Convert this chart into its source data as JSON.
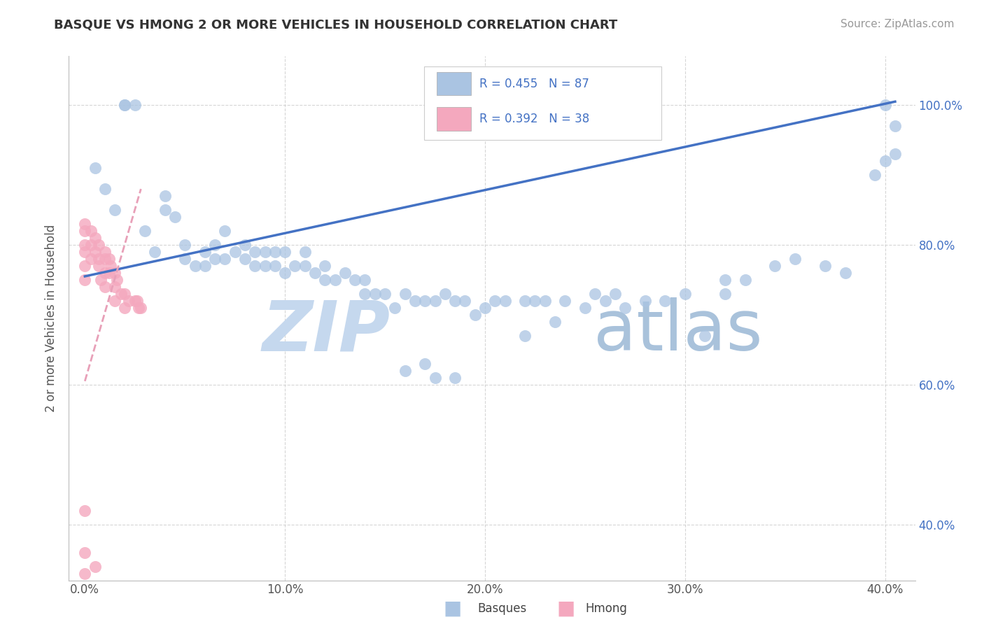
{
  "title": "BASQUE VS HMONG 2 OR MORE VEHICLES IN HOUSEHOLD CORRELATION CHART",
  "source": "Source: ZipAtlas.com",
  "ylabel": "2 or more Vehicles in Household",
  "R_basque": 0.455,
  "N_basque": 87,
  "R_hmong": 0.392,
  "N_hmong": 38,
  "basque_color": "#aac4e2",
  "hmong_color": "#f4a8be",
  "basque_line_color": "#4472c4",
  "hmong_line_color": "#e8a0b8",
  "legend_basque_color": "#aac4e2",
  "legend_hmong_color": "#f4a8be",
  "watermark_zip_color": "#c5d8ee",
  "watermark_atlas_color": "#a0bcd8",
  "basque_line_x0": 0.0,
  "basque_line_y0": 0.755,
  "basque_line_x1": 0.405,
  "basque_line_y1": 1.005,
  "hmong_line_x0": 0.0,
  "hmong_line_y0": 0.605,
  "hmong_line_x1": 0.028,
  "hmong_line_y1": 0.88,
  "xlim_min": -0.008,
  "xlim_max": 0.415,
  "ylim_min": 0.32,
  "ylim_max": 1.07,
  "xticks": [
    0.0,
    0.1,
    0.2,
    0.3,
    0.4
  ],
  "yticks": [
    0.4,
    0.6,
    0.8,
    1.0
  ],
  "basque_pts_x": [
    0.005,
    0.01,
    0.015,
    0.02,
    0.02,
    0.025,
    0.03,
    0.035,
    0.04,
    0.04,
    0.045,
    0.05,
    0.05,
    0.055,
    0.06,
    0.06,
    0.065,
    0.065,
    0.07,
    0.07,
    0.075,
    0.08,
    0.08,
    0.085,
    0.085,
    0.09,
    0.09,
    0.095,
    0.095,
    0.1,
    0.1,
    0.105,
    0.11,
    0.11,
    0.115,
    0.12,
    0.12,
    0.125,
    0.13,
    0.135,
    0.14,
    0.14,
    0.145,
    0.15,
    0.155,
    0.16,
    0.165,
    0.17,
    0.175,
    0.18,
    0.185,
    0.19,
    0.195,
    0.2,
    0.205,
    0.21,
    0.22,
    0.225,
    0.23,
    0.24,
    0.25,
    0.26,
    0.27,
    0.28,
    0.29,
    0.3,
    0.31,
    0.32,
    0.22,
    0.235,
    0.16,
    0.17,
    0.175,
    0.185,
    0.255,
    0.265,
    0.32,
    0.33,
    0.345,
    0.355,
    0.37,
    0.38,
    0.395,
    0.4,
    0.4,
    0.405,
    0.405
  ],
  "basque_pts_y": [
    0.91,
    0.88,
    0.85,
    1.0,
    1.0,
    1.0,
    0.82,
    0.79,
    0.85,
    0.87,
    0.84,
    0.8,
    0.78,
    0.77,
    0.77,
    0.79,
    0.78,
    0.8,
    0.78,
    0.82,
    0.79,
    0.8,
    0.78,
    0.77,
    0.79,
    0.79,
    0.77,
    0.77,
    0.79,
    0.79,
    0.76,
    0.77,
    0.77,
    0.79,
    0.76,
    0.77,
    0.75,
    0.75,
    0.76,
    0.75,
    0.75,
    0.73,
    0.73,
    0.73,
    0.71,
    0.73,
    0.72,
    0.72,
    0.72,
    0.73,
    0.72,
    0.72,
    0.7,
    0.71,
    0.72,
    0.72,
    0.72,
    0.72,
    0.72,
    0.72,
    0.71,
    0.72,
    0.71,
    0.72,
    0.72,
    0.73,
    0.67,
    0.73,
    0.67,
    0.69,
    0.62,
    0.63,
    0.61,
    0.61,
    0.73,
    0.73,
    0.75,
    0.75,
    0.77,
    0.78,
    0.77,
    0.76,
    0.9,
    0.92,
    1.0,
    0.97,
    0.93
  ],
  "hmong_pts_x": [
    0.0,
    0.0,
    0.0,
    0.0,
    0.0,
    0.0,
    0.0,
    0.0,
    0.003,
    0.003,
    0.003,
    0.005,
    0.005,
    0.007,
    0.007,
    0.007,
    0.008,
    0.01,
    0.01,
    0.01,
    0.01,
    0.012,
    0.012,
    0.013,
    0.015,
    0.015,
    0.015,
    0.016,
    0.018,
    0.02,
    0.02,
    0.022,
    0.025,
    0.026,
    0.027,
    0.028,
    0.005,
    0.0
  ],
  "hmong_pts_y": [
    0.83,
    0.82,
    0.8,
    0.79,
    0.77,
    0.75,
    0.42,
    0.36,
    0.82,
    0.8,
    0.78,
    0.81,
    0.79,
    0.8,
    0.78,
    0.77,
    0.75,
    0.79,
    0.78,
    0.76,
    0.74,
    0.78,
    0.76,
    0.77,
    0.76,
    0.74,
    0.72,
    0.75,
    0.73,
    0.73,
    0.71,
    0.72,
    0.72,
    0.72,
    0.71,
    0.71,
    0.34,
    0.33
  ]
}
